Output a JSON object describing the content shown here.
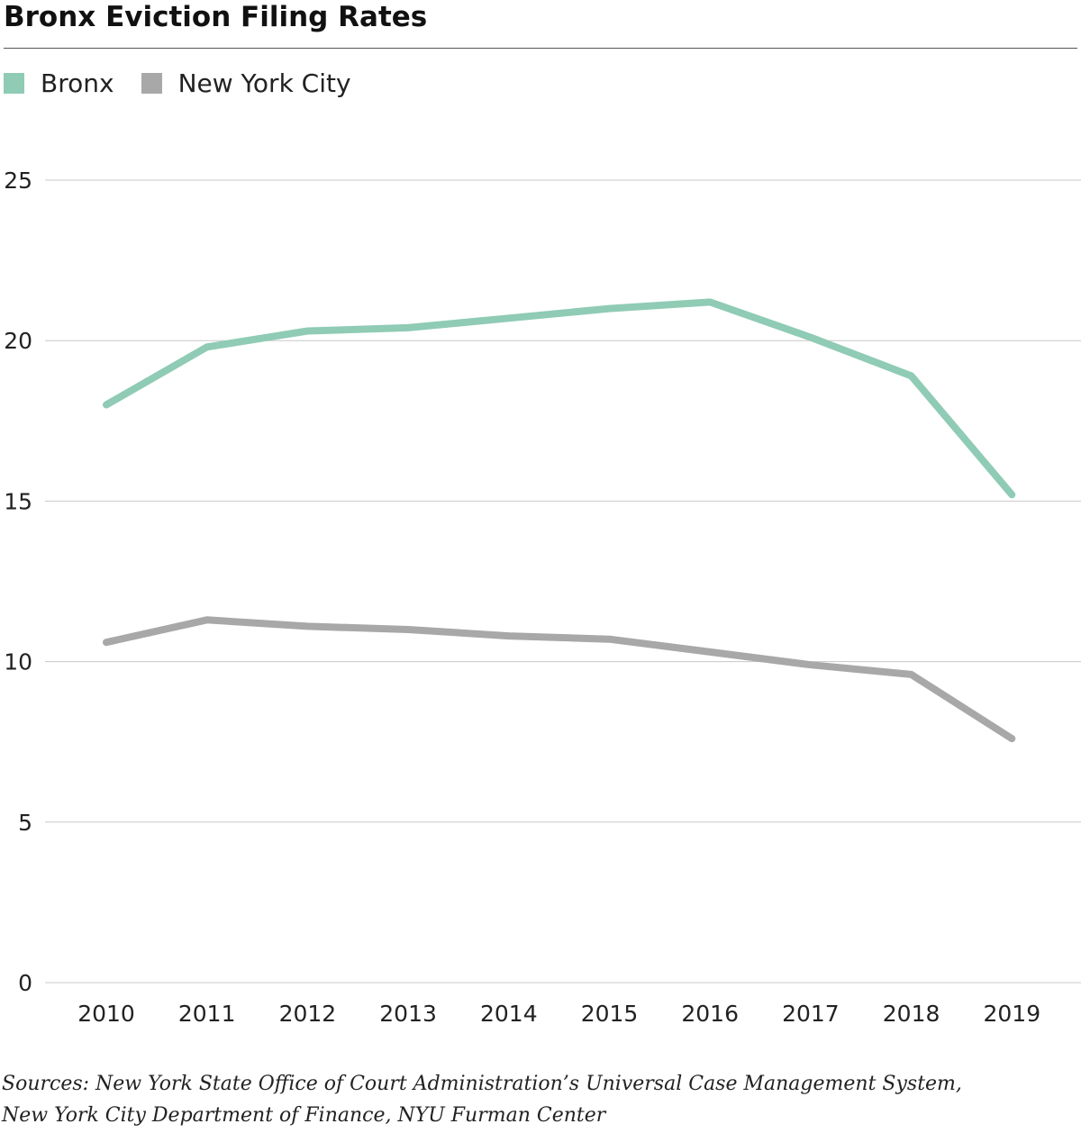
{
  "title": "Bronx Eviction Filing Rates",
  "legend": [
    {
      "name": "Bronx",
      "color": "#8fcbb5"
    },
    {
      "name": "New York City",
      "color": "#a8a8a8"
    }
  ],
  "source": {
    "line1": "Sources: New York State Office of Court Administration’s Universal Case Management System,",
    "line2": "New York City Department of Finance, NYU Furman Center"
  },
  "chart_data": {
    "type": "line",
    "title": "Bronx Eviction Filing Rates",
    "x": [
      "2010",
      "2011",
      "2012",
      "2013",
      "2014",
      "2015",
      "2016",
      "2017",
      "2018",
      "2019"
    ],
    "series": [
      {
        "name": "Bronx",
        "color": "#8fcbb5",
        "values": [
          18.0,
          19.8,
          20.3,
          20.4,
          20.7,
          21.0,
          21.2,
          20.1,
          18.9,
          15.2
        ]
      },
      {
        "name": "New York City",
        "color": "#a8a8a8",
        "values": [
          10.6,
          11.3,
          11.1,
          11.0,
          10.8,
          10.7,
          10.3,
          9.9,
          9.6,
          7.6
        ]
      }
    ],
    "yticks": [
      0,
      5,
      10,
      15,
      20,
      25
    ],
    "ylim": [
      0,
      25
    ],
    "xlabel": "",
    "ylabel": "",
    "grid": true,
    "legend_position": "top-left"
  }
}
